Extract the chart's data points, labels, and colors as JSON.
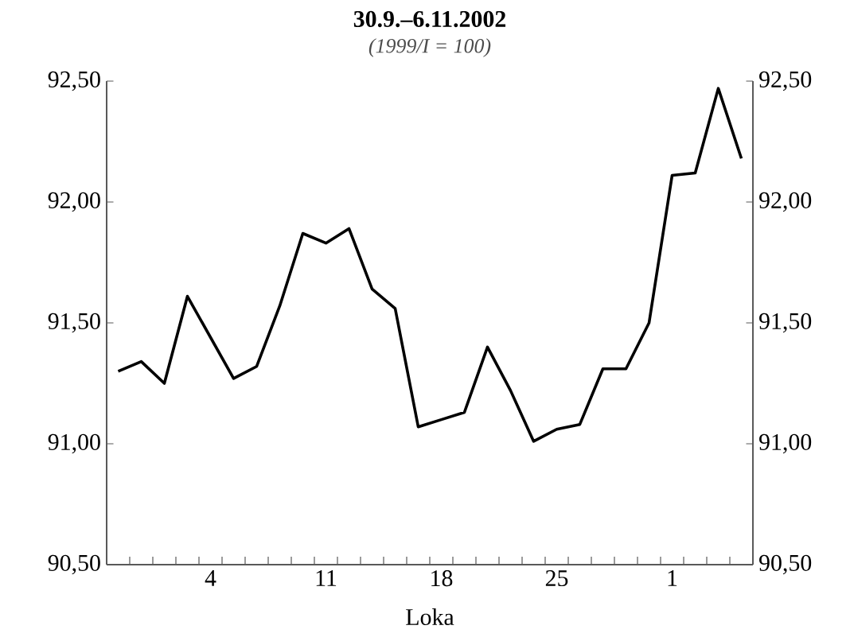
{
  "chart_data": {
    "type": "line",
    "title": "30.9.–6.11.2002",
    "subtitle": "(1999/I = 100)",
    "xlabel": "Loka",
    "categories": [
      null,
      null,
      null,
      null,
      "4",
      null,
      null,
      null,
      null,
      "11",
      null,
      null,
      null,
      null,
      "18",
      null,
      null,
      null,
      null,
      "25",
      null,
      null,
      null,
      null,
      "1",
      null,
      null,
      null
    ],
    "series": [
      {
        "color": "#000000",
        "values": [
          91.3,
          91.34,
          91.25,
          91.61,
          91.44,
          91.27,
          91.32,
          91.57,
          91.87,
          91.83,
          91.89,
          91.64,
          91.56,
          91.07,
          91.1,
          91.13,
          91.4,
          91.22,
          91.01,
          91.06,
          91.08,
          91.31,
          91.31,
          91.5,
          92.11,
          92.12,
          92.47,
          92.18
        ]
      }
    ],
    "ylim": [
      90.5,
      92.5
    ],
    "yticks": [
      {
        "value": 90.5,
        "label": "90,50"
      },
      {
        "value": 91.0,
        "label": "91,00"
      },
      {
        "value": 91.5,
        "label": "91,50"
      },
      {
        "value": 92.0,
        "label": "92,00"
      },
      {
        "value": 92.5,
        "label": "92,50"
      }
    ],
    "y2lim": [
      90.5,
      92.5
    ],
    "y2ticks": [
      {
        "value": 90.5,
        "label": "90,50"
      },
      {
        "value": 91.0,
        "label": "91,00"
      },
      {
        "value": 91.5,
        "label": "91,50"
      },
      {
        "value": 92.0,
        "label": "92,00"
      },
      {
        "value": 92.5,
        "label": "92,50"
      }
    ],
    "grid": false
  }
}
